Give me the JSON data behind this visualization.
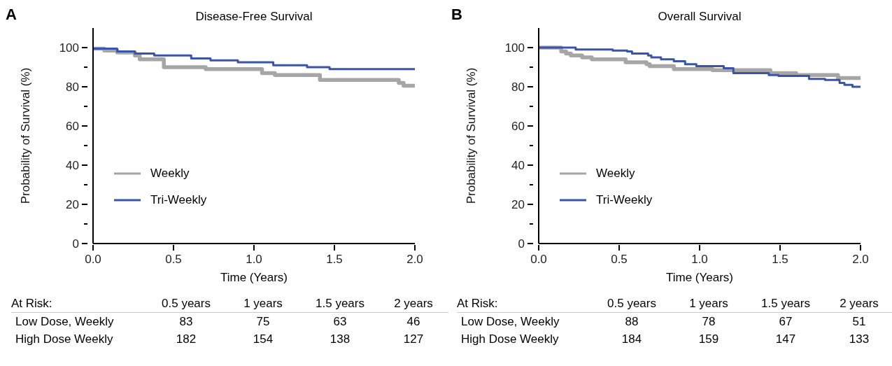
{
  "chart_data": [
    {
      "type": "step",
      "title": "Disease-Free Survival",
      "xlabel": "Time (Years)",
      "ylabel": "Probability of Survival (%)",
      "xlim": [
        0,
        2
      ],
      "xticks": [
        {
          "value": 0,
          "label": "0.0"
        },
        {
          "value": 0.5,
          "label": "0.5"
        },
        {
          "value": 1,
          "label": "1.0"
        },
        {
          "value": 1.5,
          "label": "1.5"
        },
        {
          "value": 2,
          "label": "2.0"
        }
      ],
      "ylim": [
        0,
        110
      ],
      "yticks": [
        0,
        {
          "value": 10,
          "label": null
        },
        20,
        {
          "value": 30,
          "label": null
        },
        40,
        {
          "value": 50,
          "label": null
        },
        60,
        {
          "value": 70,
          "label": null
        },
        80,
        {
          "value": 90,
          "label": null
        },
        100
      ],
      "legend": "bottom left",
      "line_style": "solid",
      "annotations": [
        "A",
        "At Risk:",
        "0.5 years",
        "1 years",
        "1.5 years",
        "2 years",
        "Low Dose, Weekly",
        "83",
        "75",
        "63",
        "46",
        "High Dose Weekly",
        "182",
        "154",
        "138",
        "127"
      ],
      "series": [
        {
          "name": "Weekly",
          "color": "#a6a6a6",
          "x": [
            0,
            0.07,
            0.15,
            0.26,
            0.29,
            0.44,
            0.7,
            1.05,
            1.13,
            1.41,
            1.9,
            1.93,
            2.0
          ],
          "values": [
            99.5,
            98.5,
            97.5,
            96,
            94,
            90,
            89,
            87,
            86,
            83.5,
            82,
            80.5,
            80.5
          ]
        },
        {
          "name": "Tri-Weekly",
          "color": "#3a55a8",
          "x": [
            0,
            0.15,
            0.26,
            0.38,
            0.61,
            0.73,
            0.9,
            1.12,
            1.33,
            1.47,
            2.0
          ],
          "values": [
            99.5,
            98,
            97,
            96,
            94.5,
            93.5,
            92.5,
            91,
            90,
            89,
            89
          ]
        }
      ]
    },
    {
      "type": "step",
      "title": "Overall Survival",
      "xlabel": "Time (Years)",
      "ylabel": "Probability of Survival (%)",
      "xlim": [
        0,
        2
      ],
      "xticks": [
        {
          "value": 0,
          "label": "0.0"
        },
        {
          "value": 0.5,
          "label": "0.5"
        },
        {
          "value": 1,
          "label": "1.0"
        },
        {
          "value": 1.5,
          "label": "1.5"
        },
        {
          "value": 2,
          "label": "2.0"
        }
      ],
      "ylim": [
        0,
        110
      ],
      "yticks": [
        0,
        {
          "value": 10,
          "label": null
        },
        20,
        {
          "value": 30,
          "label": null
        },
        40,
        {
          "value": 50,
          "label": null
        },
        60,
        {
          "value": 70,
          "label": null
        },
        80,
        {
          "value": 90,
          "label": null
        },
        100
      ],
      "legend": "bottom left",
      "line_style": "solid",
      "annotations": [
        "B",
        "At Risk:",
        "0.5 years",
        "1 years",
        "1.5 years",
        "2 years",
        "Low Dose, Weekly",
        "88",
        "78",
        "67",
        "51",
        "High Dose Weekly",
        "184",
        "159",
        "147",
        "133"
      ],
      "series": [
        {
          "name": "Weekly",
          "color": "#a6a6a6",
          "x": [
            0,
            0.14,
            0.17,
            0.2,
            0.27,
            0.33,
            0.54,
            0.67,
            0.69,
            0.84,
            1.08,
            1.44,
            1.6,
            1.86,
            2.0
          ],
          "values": [
            100,
            98,
            97,
            96,
            95,
            94,
            92.5,
            91.5,
            90.5,
            89,
            88.5,
            87,
            86,
            84.5,
            84.5
          ]
        },
        {
          "name": "Tri-Weekly",
          "color": "#3a55a8",
          "x": [
            0,
            0.23,
            0.46,
            0.55,
            0.58,
            0.68,
            0.7,
            0.76,
            0.84,
            0.91,
            0.98,
            1.15,
            1.21,
            1.43,
            1.49,
            1.68,
            1.78,
            1.87,
            1.9,
            1.95,
            2.0
          ],
          "values": [
            100,
            99,
            98.5,
            98,
            97,
            96,
            95,
            94,
            93,
            91.5,
            90.5,
            89.5,
            87,
            86,
            85.5,
            84,
            83.5,
            82,
            81,
            80,
            80
          ]
        }
      ]
    }
  ]
}
